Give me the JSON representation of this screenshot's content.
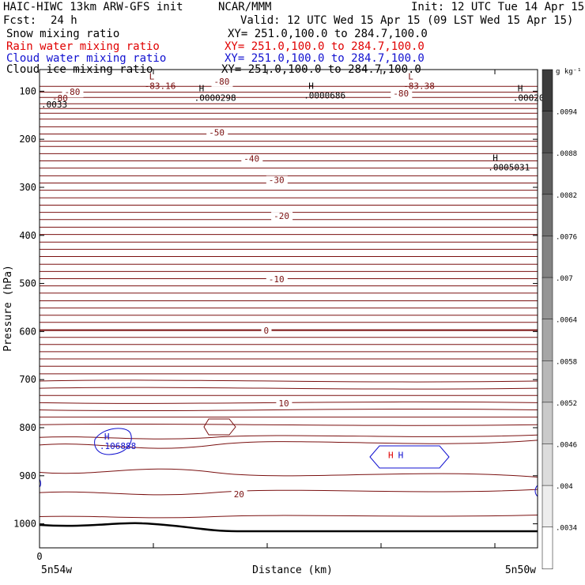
{
  "header": {
    "title": "HAIC-HIWC 13km ARW-GFS init",
    "org": "NCAR/MMM",
    "init": "Init: 12 UTC Tue 14 Apr 15",
    "fcst_label": "Fcst:",
    "fcst_value": "24 h",
    "valid": "Valid: 12 UTC Wed 15 Apr 15 (09 LST Wed 15 Apr 15)"
  },
  "fields": [
    {
      "name": "Snow mixing ratio",
      "xy": "XY= 251.0,100.0 to 284.7,100.0",
      "color": "#000000"
    },
    {
      "name": "Rain water mixing ratio",
      "xy": "XY= 251.0,100.0 to 284.7,100.0",
      "color": "#e00000"
    },
    {
      "name": "Cloud water mixing ratio",
      "xy": "XY= 251.0,100.0 to 284.7,100.0",
      "color": "#1010d0"
    },
    {
      "name": "Cloud ice mixing ratio",
      "xy": "XY= 251.0,100.0 to 284.7,100.0",
      "color": "#000000"
    }
  ],
  "chart_data": {
    "type": "contour",
    "ylabel": "Pressure (hPa)",
    "xlabel": "Distance (km)",
    "y_ticks": [
      100,
      200,
      300,
      400,
      500,
      600,
      700,
      800,
      900,
      1000
    ],
    "ylim": [
      1050,
      55
    ],
    "x_tick_label": "0",
    "x_end_labels": [
      "5n54w",
      "5n50w"
    ],
    "colorbar": {
      "unit": "g kg⁻¹",
      "ticks": [
        ".0094",
        ".0088",
        ".0082",
        ".0076",
        ".007",
        ".0064",
        ".0058",
        ".0052",
        ".0046",
        ".004",
        ".0034"
      ]
    },
    "temperature_labels": [
      {
        "label": "-80",
        "p": 108,
        "x": 0.05
      },
      {
        "label": "-80",
        "p": 86,
        "x": 0.35
      },
      {
        "label": "-80",
        "p": 111,
        "x": 0.71
      },
      {
        "label": "-50",
        "p": 192,
        "x": 0.34
      },
      {
        "label": "-40",
        "p": 247,
        "x": 0.41
      },
      {
        "label": "-30",
        "p": 291,
        "x": 0.46
      },
      {
        "label": "-20",
        "p": 366,
        "x": 0.47
      },
      {
        "label": "-10",
        "p": 497,
        "x": 0.46
      },
      {
        "label": "0",
        "p": 604,
        "x": 0.45
      },
      {
        "label": "10",
        "p": 756,
        "x": 0.48
      },
      {
        "label": "20",
        "p": 945,
        "x": 0.39
      }
    ],
    "extrema": [
      {
        "mark": "L",
        "value": "-83.16",
        "p": 92,
        "x": 0.22,
        "color": "#7a1010"
      },
      {
        "mark": "L",
        "value": "-83.38",
        "p": 92,
        "x": 0.74,
        "color": "#7a1010"
      },
      {
        "mark": "H",
        "value": ".0000298",
        "p": 117,
        "x": 0.32,
        "color": "#000000"
      },
      {
        "mark": "H",
        "value": ".0000686",
        "p": 112,
        "x": 0.54,
        "color": "#000000"
      },
      {
        "mark": "H",
        "value": ".00020",
        "p": 117,
        "x": 0.96,
        "color": "#000000"
      },
      {
        "mark": "H",
        "value": ".0005031",
        "p": 261,
        "x": 0.91,
        "color": "#000000"
      },
      {
        "mark": "H",
        "value": ".106888",
        "p": 841,
        "x": 0.13,
        "color": "#1010d0"
      },
      {
        "mark": "H",
        "value": "",
        "p": 880,
        "x": 0.7,
        "color": "#e00000"
      },
      {
        "mark": "H",
        "value": "",
        "p": 880,
        "x": 0.72,
        "color": "#1010d0"
      }
    ],
    "left_labels": [
      ".0033",
      "-80"
    ]
  }
}
